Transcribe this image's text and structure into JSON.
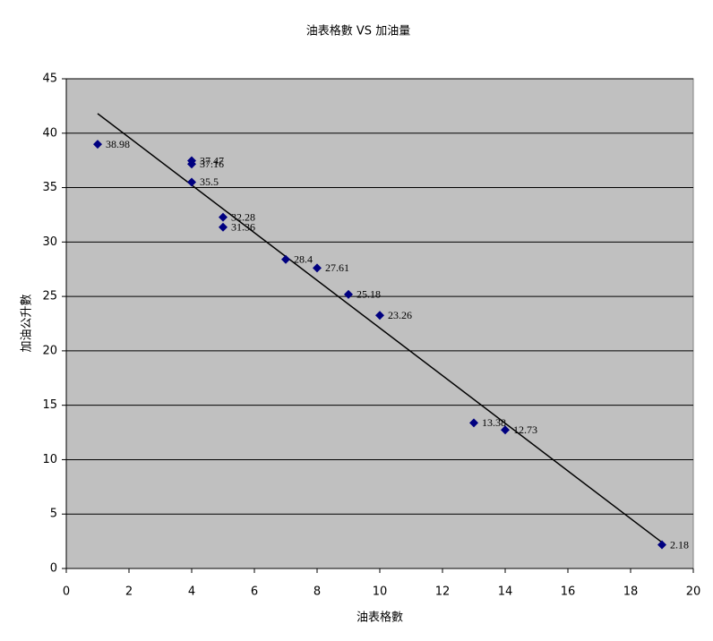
{
  "chart_data": {
    "type": "scatter",
    "title": "油表格數 VS 加油量",
    "x_label": "油表格數",
    "y_label": "加油公升數",
    "series": [
      {
        "name": "加油公升數",
        "color": "#000080",
        "x": [
          1,
          4,
          4,
          4,
          5,
          5,
          7,
          8,
          9,
          10,
          13,
          14,
          19
        ],
        "values": [
          38.98,
          37.47,
          37.16,
          35.5,
          32.28,
          31.36,
          28.4,
          27.61,
          25.18,
          23.26,
          13.38,
          12.73,
          2.18
        ]
      }
    ],
    "trendline": {
      "color": "#000000",
      "x": [
        1,
        19
      ],
      "values": [
        41.8,
        2.4
      ]
    },
    "xlim": [
      0,
      20
    ],
    "xticks": [
      0,
      2,
      4,
      6,
      8,
      10,
      12,
      14,
      16,
      18,
      20
    ],
    "ylim": [
      0,
      45
    ],
    "yticks": [
      0,
      5,
      10,
      15,
      20,
      25,
      30,
      35,
      40,
      45
    ],
    "grid": true,
    "plot_background": "#c0c0c0"
  }
}
